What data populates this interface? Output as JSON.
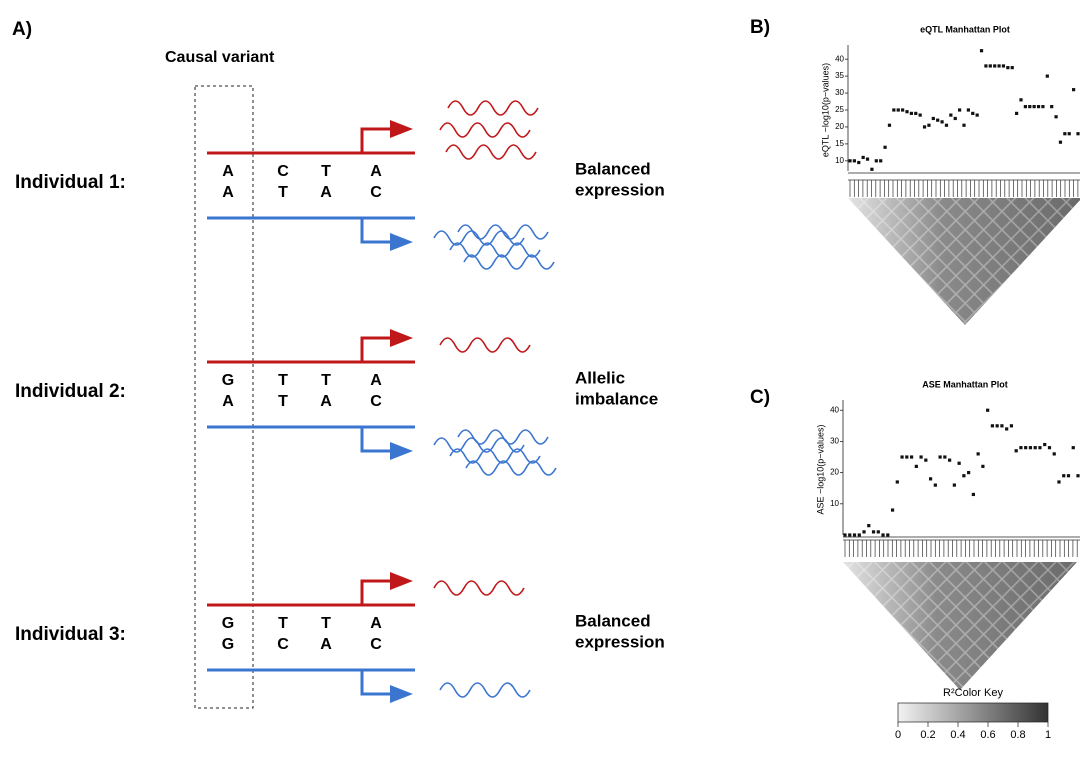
{
  "panel_a": {
    "label": "A)",
    "causal_label": "Causal variant",
    "individuals": [
      {
        "label": "Individual 1:",
        "top": [
          "A",
          "C",
          "T",
          "A"
        ],
        "bottom": [
          "A",
          "T",
          "A",
          "C"
        ],
        "outcome": [
          "Balanced",
          "expression"
        ]
      },
      {
        "label": "Individual 2:",
        "top": [
          "G",
          "T",
          "T",
          "A"
        ],
        "bottom": [
          "A",
          "T",
          "A",
          "C"
        ],
        "outcome": [
          "Allelic",
          "imbalance"
        ]
      },
      {
        "label": "Individual 3:",
        "top": [
          "G",
          "T",
          "T",
          "A"
        ],
        "bottom": [
          "G",
          "C",
          "A",
          "C"
        ],
        "outcome": [
          "Balanced",
          "expression"
        ]
      }
    ]
  },
  "panel_b": {
    "label": "B)",
    "chart": {
      "type": "scatter",
      "title": "eQTL Manhattan Plot",
      "y_label": "eQTL −log10(p−values)",
      "ylim": [
        7,
        43
      ],
      "yticks": [
        10,
        15,
        20,
        25,
        30,
        35,
        40
      ],
      "values": [
        10,
        10,
        9.5,
        11,
        10.5,
        7.5,
        10,
        10,
        14,
        20.5,
        25,
        25,
        25,
        24.5,
        24,
        24,
        23.5,
        20,
        20.5,
        22.5,
        22,
        21.5,
        20.5,
        23.5,
        22.5,
        25,
        20.5,
        25,
        24,
        23.5,
        42.5,
        38,
        38,
        38,
        38,
        38,
        37.5,
        37.5,
        24,
        28,
        26,
        26,
        26,
        26,
        26,
        35,
        26,
        23,
        15.5,
        18,
        18,
        31,
        18
      ]
    }
  },
  "panel_c": {
    "label": "C)",
    "chart": {
      "type": "scatter",
      "title": "ASE Manhattan Plot",
      "y_label": "ASE −log10(p−values)",
      "ylim": [
        0,
        42
      ],
      "yticks": [
        10,
        20,
        30,
        40
      ],
      "values": [
        0,
        0,
        0,
        0,
        1,
        3,
        1,
        1,
        0,
        0,
        8,
        17,
        25,
        25,
        25,
        22,
        25,
        24,
        18,
        16,
        25,
        25,
        24,
        16,
        23,
        19,
        20,
        13,
        26,
        22,
        40,
        35,
        35,
        35,
        34,
        35,
        27,
        28,
        28,
        28,
        28,
        28,
        29,
        28,
        26,
        17,
        19,
        19,
        28,
        19
      ]
    }
  },
  "color_key": {
    "title": "R²Color Key",
    "xlim": [
      0,
      1
    ],
    "xticks": [
      0,
      0.2,
      0.4,
      0.6,
      0.8,
      1
    ]
  }
}
